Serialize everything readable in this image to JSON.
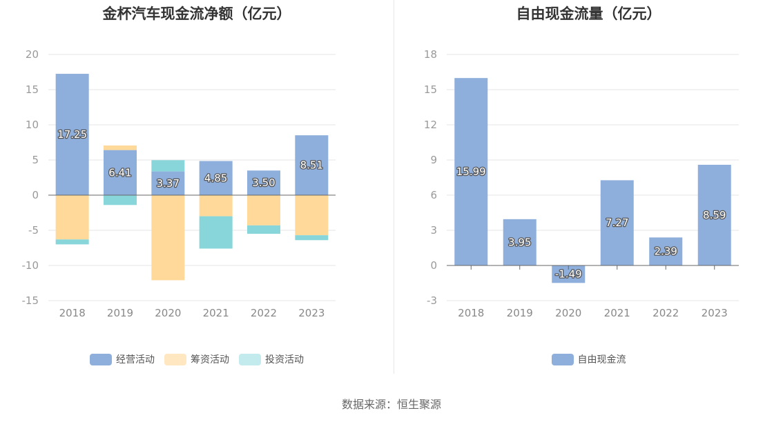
{
  "colors": {
    "operating": "#8eaedb",
    "financing": "#ffd99a",
    "investing": "#88d6da",
    "free_cash_flow": "#8eaedb",
    "grid": "#e6e6e6",
    "axis": "#666666"
  },
  "left_chart": {
    "title": "金杯汽车现金流净额（亿元）",
    "legend": [
      {
        "label": "经营活动",
        "swatch": "#8eaedb"
      },
      {
        "label": "筹资活动",
        "swatch": "#ffe7c2"
      },
      {
        "label": "投资活动",
        "swatch": "#c3ebed"
      }
    ]
  },
  "right_chart": {
    "title": "自由现金流量（亿元）",
    "legend": [
      {
        "label": "自由现金流",
        "swatch": "#8eaedb"
      }
    ]
  },
  "source": "数据来源：恒生聚源",
  "chart_data": [
    {
      "type": "bar",
      "stacked": true,
      "title": "金杯汽车现金流净额（亿元）",
      "categories": [
        "2018",
        "2019",
        "2020",
        "2021",
        "2022",
        "2023"
      ],
      "ylim": [
        -15,
        20
      ],
      "yticks": [
        20,
        15,
        10,
        5,
        0,
        -5,
        -10,
        -15
      ],
      "grid": true,
      "legend_position": "bottom",
      "series": [
        {
          "name": "经营活动",
          "values": [
            17.25,
            6.41,
            3.37,
            4.85,
            3.5,
            8.51
          ],
          "labels": [
            "17.25",
            "6.41",
            "3.37",
            "4.85",
            "3.50",
            "8.51"
          ]
        },
        {
          "name": "筹资活动",
          "values": [
            -6.3,
            0.65,
            -12.1,
            -3.0,
            -4.3,
            -5.7
          ]
        },
        {
          "name": "投资活动",
          "values": [
            -0.7,
            -1.4,
            1.6,
            -4.6,
            -1.2,
            -0.7
          ]
        }
      ]
    },
    {
      "type": "bar",
      "title": "自由现金流量（亿元）",
      "categories": [
        "2018",
        "2019",
        "2020",
        "2021",
        "2022",
        "2023"
      ],
      "ylim": [
        -3,
        18
      ],
      "yticks": [
        18,
        15,
        12,
        9,
        6,
        3,
        0,
        -3
      ],
      "grid": true,
      "legend_position": "bottom",
      "series": [
        {
          "name": "自由现金流",
          "values": [
            15.99,
            3.95,
            -1.49,
            7.27,
            2.39,
            8.59
          ],
          "labels": [
            "15.99",
            "3.95",
            "-1.49",
            "7.27",
            "2.39",
            "8.59"
          ]
        }
      ]
    }
  ]
}
